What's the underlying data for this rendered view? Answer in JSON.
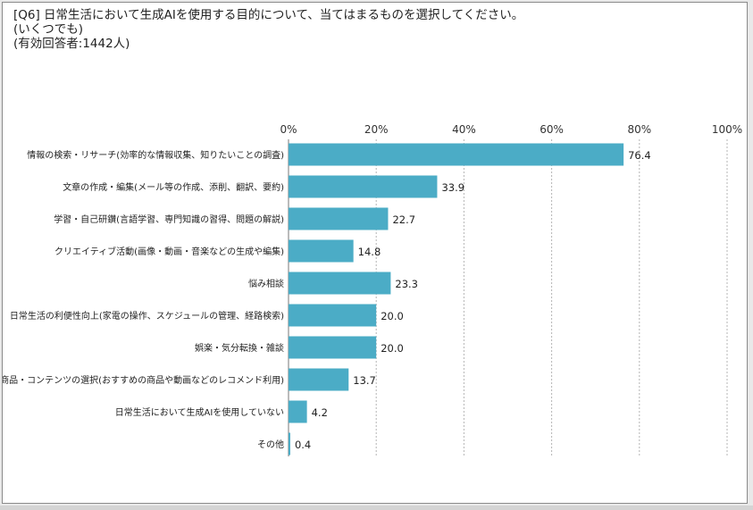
{
  "chart_data": {
    "type": "bar",
    "orientation": "horizontal",
    "title_lines": [
      "[Q6] 日常生活において生成AIを使用する目的について、当てはまるものを選択してください。",
      "(いくつでも)",
      "(有効回答者:1442人)"
    ],
    "categories": [
      "情報の検索・リサーチ(効率的な情報収集、知りたいことの調査)",
      "文章の作成・編集(メール等の作成、添削、翻訳、要約)",
      "学習・自己研鑽(言語学習、専門知識の習得、問題の解説)",
      "クリエイティブ活動(画像・動画・音楽などの生成や編集)",
      "悩み相談",
      "日常生活の利便性向上(家電の操作、スケジュールの管理、経路検索)",
      "娯楽・気分転換・雑談",
      "商品・コンテンツの選択(おすすめの商品や動画などのレコメンド利用)",
      "日常生活において生成AIを使用していない",
      "その他"
    ],
    "values": [
      76.4,
      33.9,
      22.7,
      14.8,
      23.3,
      20.0,
      20.0,
      13.7,
      4.2,
      0.4
    ],
    "value_labels": [
      "76.4",
      "33.9",
      "22.7",
      "14.8",
      "23.3",
      "20.0",
      "20.0",
      "13.7",
      "4.2",
      "0.4"
    ],
    "xlim": [
      0,
      100
    ],
    "xticks": [
      0,
      20,
      40,
      60,
      80,
      100
    ],
    "xtick_labels": [
      "0%",
      "20%",
      "40%",
      "60%",
      "80%",
      "100%"
    ],
    "bar_color": "#4bacc6",
    "grid": "vertical dashed",
    "axis_position": "top"
  }
}
